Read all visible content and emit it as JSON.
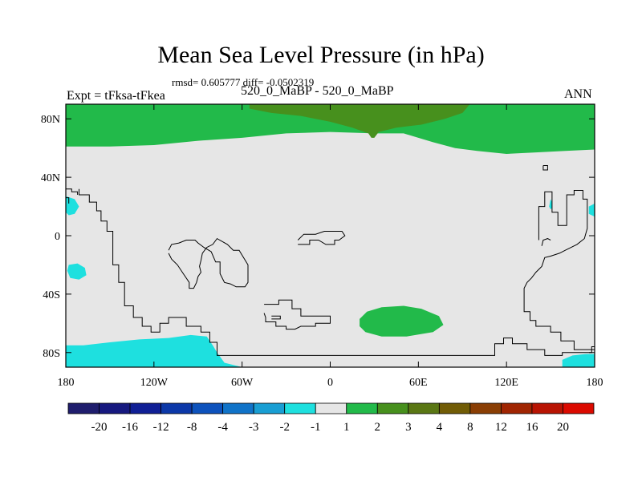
{
  "header": {
    "title": "Mean Sea Level Pressure (in hPa)",
    "stats": "rmsd= 0.605777 diff= -0.0502319",
    "experiment": "Expt = tFksa-tFkea",
    "case": "520_0_MaBP - 520_0_MaBP",
    "season": "ANN"
  },
  "chart_data": {
    "type": "heatmap",
    "title": "Mean Sea Level Pressure (in hPa)",
    "xlabel": "",
    "ylabel": "",
    "xlim": [
      -180,
      180
    ],
    "ylim": [
      -90,
      90
    ],
    "x_ticks": [
      {
        "value": -180,
        "label": "180"
      },
      {
        "value": -120,
        "label": "120W"
      },
      {
        "value": -60,
        "label": "60W"
      },
      {
        "value": 0,
        "label": "0"
      },
      {
        "value": 60,
        "label": "60E"
      },
      {
        "value": 120,
        "label": "120E"
      },
      {
        "value": 180,
        "label": "180"
      }
    ],
    "y_ticks": [
      {
        "value": 80,
        "label": "80N"
      },
      {
        "value": 40,
        "label": "40N"
      },
      {
        "value": 0,
        "label": "0"
      },
      {
        "value": -40,
        "label": "40S"
      },
      {
        "value": -80,
        "label": "80S"
      }
    ],
    "background_color": "#e6e6e6",
    "colorbar": {
      "boundaries": [
        "-20",
        "-16",
        "-12",
        "-8",
        "-4",
        "-3",
        "-2",
        "-1",
        "1",
        "2",
        "3",
        "4",
        "8",
        "12",
        "16",
        "20"
      ],
      "colors": [
        "#1f1d6d",
        "#16197f",
        "#101f95",
        "#0c38a8",
        "#0d52bc",
        "#1073c8",
        "#199ed3",
        "#1ee0df",
        "#e6e6e6",
        "#22ba4a",
        "#47901d",
        "#5a7714",
        "#715c06",
        "#8a3e04",
        "#a02502",
        "#b81403",
        "#db0a00"
      ]
    },
    "regions": [
      {
        "name": "arctic-positive-band",
        "range": "1 to 2",
        "color": "#22ba4a",
        "points": [
          [
            -180,
            90
          ],
          [
            180,
            90
          ],
          [
            180,
            59
          ],
          [
            160,
            58
          ],
          [
            140,
            57
          ],
          [
            120,
            56
          ],
          [
            110,
            57
          ],
          [
            100,
            58
          ],
          [
            85,
            60
          ],
          [
            70,
            64
          ],
          [
            60,
            67
          ],
          [
            50,
            70
          ],
          [
            30,
            70
          ],
          [
            0,
            71
          ],
          [
            -30,
            70
          ],
          [
            -60,
            67
          ],
          [
            -90,
            65
          ],
          [
            -120,
            62
          ],
          [
            -150,
            61
          ],
          [
            -180,
            61
          ]
        ]
      },
      {
        "name": "arctic-core",
        "range": "2 to 3",
        "color": "#47901d",
        "points": [
          [
            -55,
            90
          ],
          [
            95,
            90
          ],
          [
            90,
            84
          ],
          [
            78,
            80
          ],
          [
            62,
            76
          ],
          [
            45,
            74
          ],
          [
            33,
            71
          ],
          [
            30,
            67
          ],
          [
            28,
            67
          ],
          [
            26,
            70
          ],
          [
            15,
            74
          ],
          [
            0,
            78
          ],
          [
            -20,
            82
          ],
          [
            -40,
            84
          ],
          [
            -55,
            87
          ]
        ]
      },
      {
        "name": "south-atlantic-positive",
        "range": "1 to 2",
        "color": "#22ba4a",
        "points": [
          [
            20,
            -57
          ],
          [
            25,
            -52
          ],
          [
            35,
            -49
          ],
          [
            50,
            -48
          ],
          [
            62,
            -50
          ],
          [
            74,
            -55
          ],
          [
            77,
            -61
          ],
          [
            70,
            -66
          ],
          [
            52,
            -69
          ],
          [
            35,
            -69
          ],
          [
            24,
            -66
          ],
          [
            20,
            -62
          ]
        ]
      },
      {
        "name": "antarctic-negative",
        "range": "-1 to -2",
        "color": "#1ee0df",
        "points": [
          [
            -180,
            -90
          ],
          [
            -180,
            -75
          ],
          [
            -168,
            -75
          ],
          [
            -150,
            -73
          ],
          [
            -130,
            -71
          ],
          [
            -110,
            -70
          ],
          [
            -95,
            -68
          ],
          [
            -84,
            -69
          ],
          [
            -80,
            -75
          ],
          [
            -77,
            -80
          ],
          [
            -72,
            -87
          ],
          [
            -60,
            -90
          ]
        ]
      },
      {
        "name": "antarctic-negative-east",
        "range": "-1 to -2",
        "color": "#1ee0df",
        "points": [
          [
            158,
            -90
          ],
          [
            158,
            -85
          ],
          [
            165,
            -82
          ],
          [
            174,
            -81
          ],
          [
            180,
            -81
          ],
          [
            180,
            -90
          ]
        ]
      },
      {
        "name": "east-pacific-negative",
        "range": "-1 to -2",
        "color": "#1ee0df",
        "points": [
          [
            -178,
            -20
          ],
          [
            -172,
            -19
          ],
          [
            -167,
            -22
          ],
          [
            -166,
            -27
          ],
          [
            -171,
            -30
          ],
          [
            -177,
            -29
          ],
          [
            -179,
            -24
          ]
        ]
      },
      {
        "name": "central-america-negative",
        "range": "-1 to -2",
        "color": "#1ee0df",
        "points": [
          [
            -180,
            27
          ],
          [
            -174,
            25
          ],
          [
            -171,
            20
          ],
          [
            -174,
            15
          ],
          [
            -178,
            14
          ],
          [
            -180,
            16
          ]
        ]
      },
      {
        "name": "west-pacific-negative-right",
        "range": "-1 to -2",
        "color": "#1ee0df",
        "points": [
          [
            180,
            22
          ],
          [
            176,
            20
          ],
          [
            176,
            15
          ],
          [
            180,
            13
          ]
        ]
      },
      {
        "name": "pacific-small-negative",
        "range": "-1 to -2",
        "color": "#1ee0df",
        "points": [
          [
            150,
            25
          ],
          [
            151,
            23
          ],
          [
            151,
            19
          ],
          [
            150,
            18
          ],
          [
            149,
            20
          ]
        ]
      }
    ],
    "coastlines": [
      [
        [
          -171,
          32
        ],
        [
          -171,
          28
        ],
        [
          -164,
          28
        ],
        [
          -164,
          23
        ],
        [
          -159,
          23
        ],
        [
          -159,
          17
        ],
        [
          -156,
          17
        ],
        [
          -156,
          10
        ],
        [
          -152,
          10
        ],
        [
          -152,
          3
        ],
        [
          -148,
          3
        ],
        [
          -148,
          -20
        ],
        [
          -144,
          -20
        ],
        [
          -144,
          -32
        ],
        [
          -140,
          -32
        ],
        [
          -140,
          -48
        ],
        [
          -134,
          -48
        ],
        [
          -134,
          -56
        ],
        [
          -128,
          -56
        ],
        [
          -128,
          -62
        ],
        [
          -122,
          -62
        ],
        [
          -122,
          -66
        ],
        [
          -116,
          -66
        ],
        [
          -116,
          -60
        ],
        [
          -110,
          -60
        ],
        [
          -110,
          -56
        ],
        [
          -98,
          -56
        ],
        [
          -98,
          -62
        ],
        [
          -88,
          -62
        ],
        [
          -88,
          -66
        ],
        [
          -82,
          -66
        ],
        [
          -82,
          -73
        ],
        [
          -77,
          -73
        ],
        [
          -77,
          -82
        ],
        [
          -50,
          -82
        ],
        [
          -20,
          -82
        ],
        [
          10,
          -82
        ],
        [
          40,
          -82
        ],
        [
          60,
          -82
        ],
        [
          80,
          -82
        ],
        [
          100,
          -82
        ],
        [
          112,
          -82
        ],
        [
          112,
          -74
        ],
        [
          118,
          -74
        ],
        [
          118,
          -70
        ],
        [
          124,
          -70
        ],
        [
          124,
          -74
        ],
        [
          134,
          -74
        ],
        [
          134,
          -78
        ],
        [
          146,
          -78
        ],
        [
          146,
          -82
        ],
        [
          158,
          -82
        ],
        [
          158,
          -80
        ],
        [
          178,
          -80
        ],
        [
          178,
          -76
        ],
        [
          180,
          -76
        ]
      ],
      [
        [
          -180,
          32
        ],
        [
          -176,
          32
        ],
        [
          -176,
          30
        ],
        [
          -172,
          30
        ],
        [
          -172,
          28
        ]
      ],
      [
        [
          -180,
          26
        ],
        [
          -178,
          26
        ],
        [
          -178,
          22
        ]
      ],
      [
        [
          -110,
          -10
        ],
        [
          -108,
          -6
        ],
        [
          -103,
          -5
        ],
        [
          -98,
          -3
        ],
        [
          -92,
          -3
        ],
        [
          -90,
          -5
        ],
        [
          -86,
          -8
        ],
        [
          -81,
          -11
        ],
        [
          -78,
          -18
        ],
        [
          -75,
          -18
        ],
        [
          -75,
          -26
        ],
        [
          -72,
          -32
        ],
        [
          -68,
          -33
        ],
        [
          -64,
          -35
        ],
        [
          -58,
          -35
        ],
        [
          -56,
          -32
        ],
        [
          -56,
          -20
        ],
        [
          -62,
          -10
        ],
        [
          -66,
          -10
        ],
        [
          -70,
          -6
        ],
        [
          -77,
          -2
        ],
        [
          -80,
          -6
        ],
        [
          -84,
          -8
        ],
        [
          -87,
          -12
        ],
        [
          -88,
          -17
        ],
        [
          -89,
          -21
        ],
        [
          -88,
          -25
        ],
        [
          -90,
          -28
        ],
        [
          -91,
          -32
        ],
        [
          -93,
          -36
        ],
        [
          -96,
          -36
        ],
        [
          -96,
          -32
        ],
        [
          -100,
          -26
        ],
        [
          -104,
          -20
        ],
        [
          -108,
          -16
        ],
        [
          -110,
          -12
        ]
      ],
      [
        [
          -22,
          -3
        ],
        [
          -18,
          1
        ],
        [
          -10,
          1
        ],
        [
          -4,
          3
        ],
        [
          8,
          3
        ],
        [
          10,
          0
        ],
        [
          6,
          -3
        ],
        [
          3,
          -3
        ],
        [
          3,
          -6
        ],
        [
          -3,
          -6
        ],
        [
          -8,
          -3
        ],
        [
          -14,
          -3
        ],
        [
          -14,
          -6
        ],
        [
          -22,
          -6
        ]
      ],
      [
        [
          -45,
          -47
        ],
        [
          -35,
          -47
        ],
        [
          -35,
          -44
        ],
        [
          -26,
          -44
        ],
        [
          -26,
          -50
        ],
        [
          -20,
          -50
        ],
        [
          -20,
          -55
        ],
        [
          0,
          -55
        ],
        [
          0,
          -60
        ],
        [
          -10,
          -60
        ],
        [
          -10,
          -62
        ],
        [
          -20,
          -62
        ],
        [
          -24,
          -64
        ],
        [
          -30,
          -64
        ],
        [
          -30,
          -62
        ],
        [
          -37,
          -62
        ],
        [
          -37,
          -59
        ],
        [
          -44,
          -59
        ],
        [
          -44,
          -56
        ],
        [
          -45,
          -53
        ]
      ],
      [
        [
          -40,
          -57
        ],
        [
          -34,
          -57
        ],
        [
          -34,
          -55
        ],
        [
          -40,
          -55
        ]
      ],
      [
        [
          145,
          48
        ],
        [
          148,
          48
        ],
        [
          148,
          45
        ],
        [
          145,
          45
        ],
        [
          145,
          48
        ]
      ],
      [
        [
          142,
          -3
        ],
        [
          142,
          20
        ],
        [
          146,
          20
        ],
        [
          146,
          30
        ],
        [
          151,
          30
        ],
        [
          151,
          16
        ],
        [
          155,
          16
        ],
        [
          155,
          7
        ],
        [
          161,
          7
        ],
        [
          161,
          28
        ],
        [
          166,
          28
        ],
        [
          166,
          31
        ],
        [
          172,
          31
        ],
        [
          172,
          25
        ],
        [
          175,
          25
        ],
        [
          175,
          5
        ],
        [
          173,
          -2
        ],
        [
          168,
          -6
        ],
        [
          164,
          -8
        ],
        [
          160,
          -10
        ],
        [
          156,
          -12
        ],
        [
          150,
          -14
        ],
        [
          146,
          -15
        ],
        [
          144,
          -21
        ],
        [
          140,
          -25
        ],
        [
          137,
          -29
        ],
        [
          134,
          -32
        ],
        [
          132,
          -36
        ],
        [
          132,
          -52
        ],
        [
          136,
          -52
        ],
        [
          136,
          -58
        ],
        [
          140,
          -58
        ],
        [
          140,
          -62
        ],
        [
          150,
          -62
        ],
        [
          150,
          -66
        ],
        [
          157,
          -66
        ],
        [
          157,
          -72
        ],
        [
          166,
          -72
        ],
        [
          166,
          -78
        ],
        [
          176,
          -78
        ],
        [
          180,
          -78
        ]
      ],
      [
        [
          144,
          -7
        ],
        [
          145,
          -3
        ],
        [
          148,
          -2
        ],
        [
          150,
          -3
        ]
      ]
    ]
  }
}
